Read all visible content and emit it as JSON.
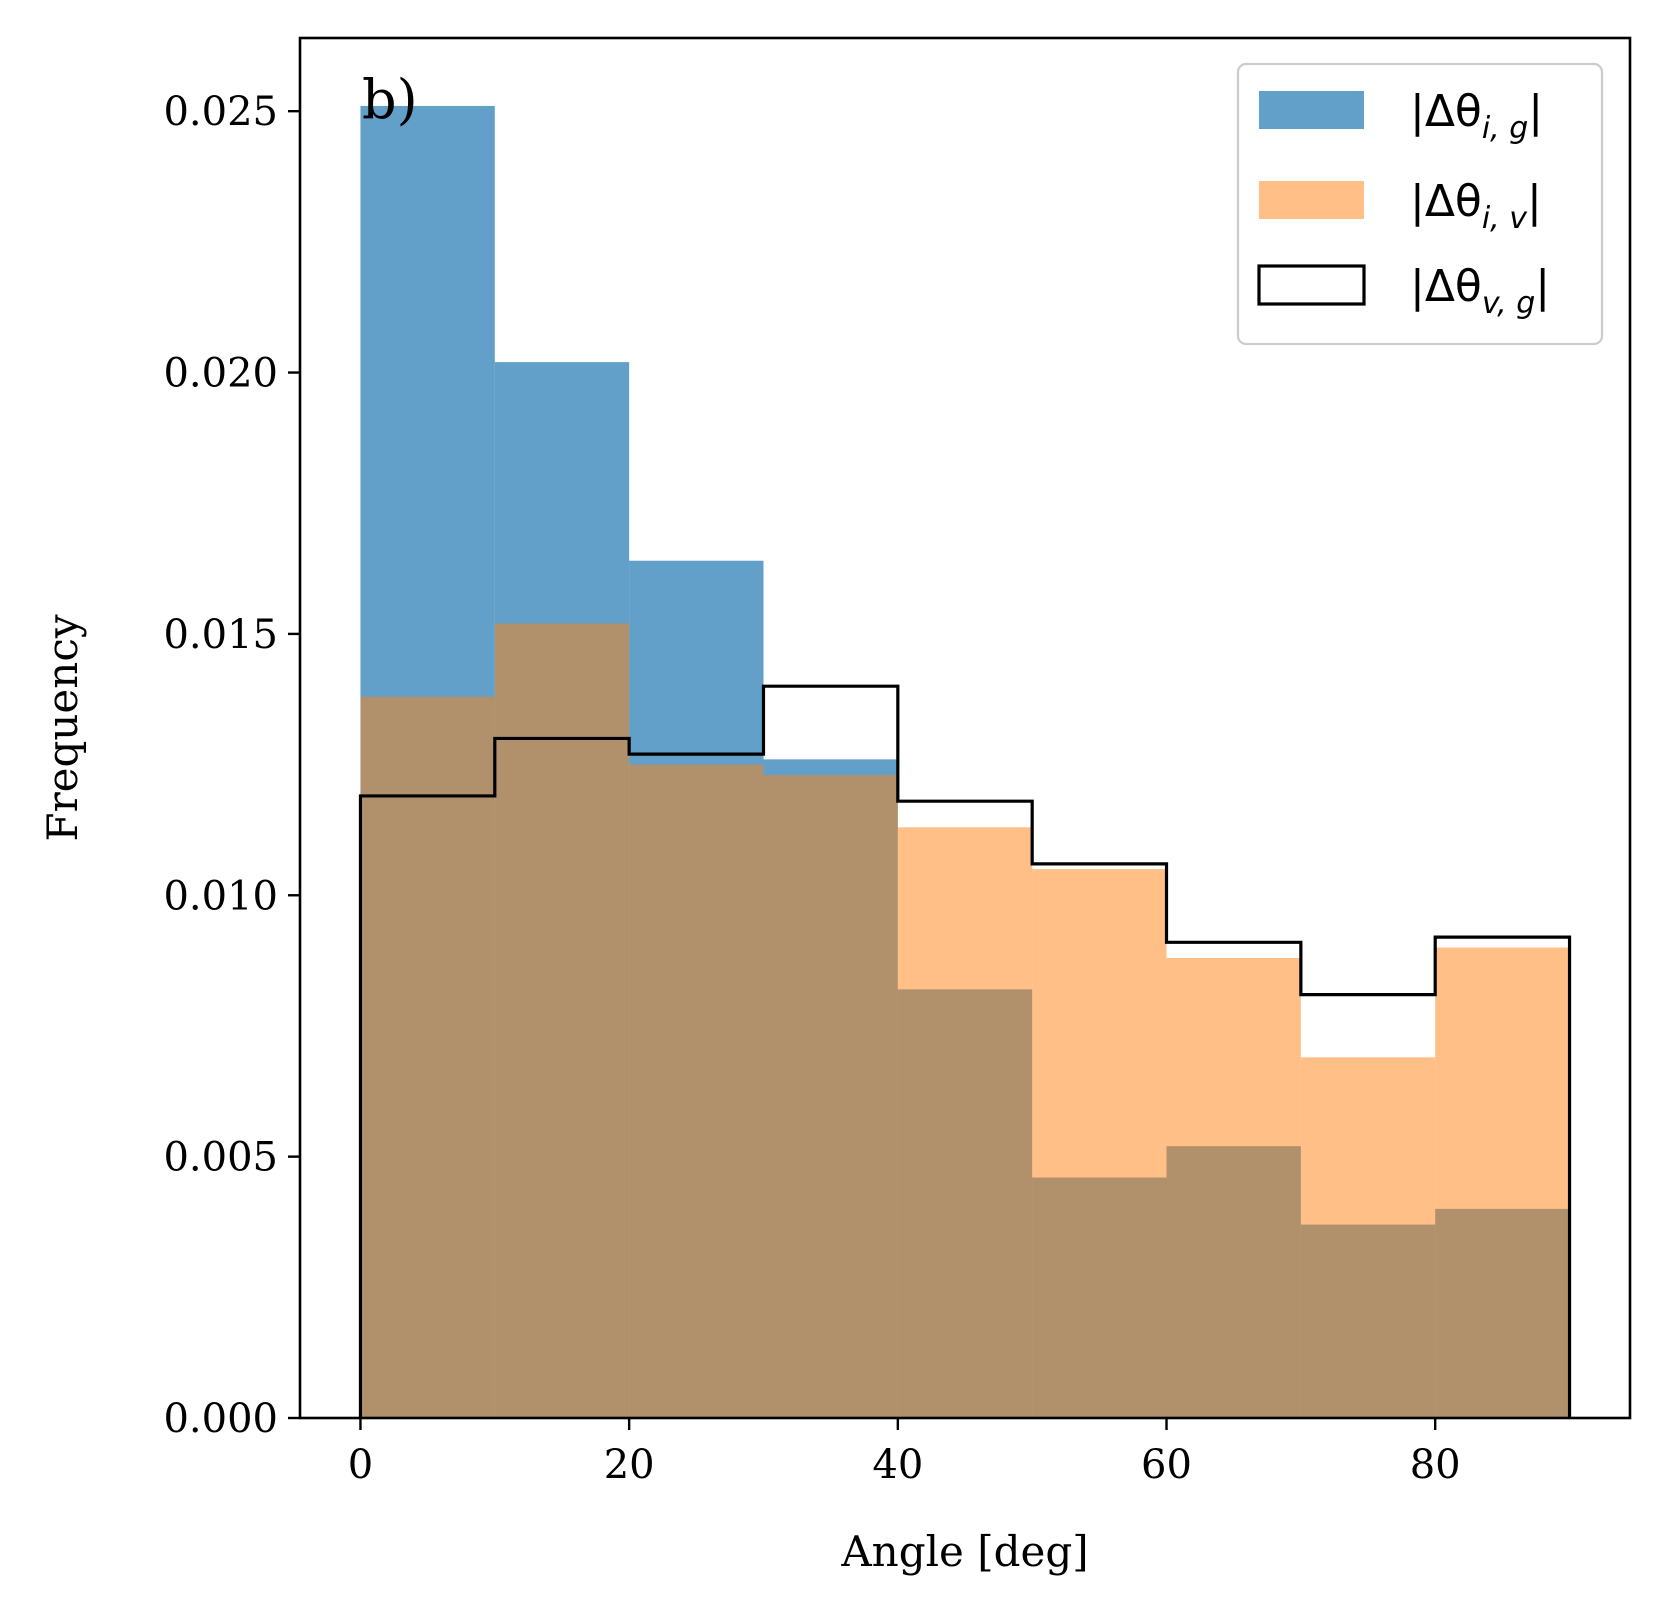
{
  "chart_data": {
    "type": "histogram",
    "panel_label": "b)",
    "xlabel": "Angle [deg]",
    "ylabel": "Frequency",
    "xlim": [
      -4.5,
      94.5
    ],
    "ylim": [
      0,
      0.0264
    ],
    "grid": false,
    "legend_position": "top-right",
    "bin_edges": [
      0,
      10,
      20,
      30,
      40,
      50,
      60,
      70,
      80,
      90
    ],
    "x_ticks": [
      0,
      20,
      40,
      60,
      80
    ],
    "x_tick_labels": [
      "0",
      "20",
      "40",
      "60",
      "80"
    ],
    "y_ticks": [
      0.0,
      0.005,
      0.01,
      0.015,
      0.02,
      0.025
    ],
    "y_tick_labels": [
      "0.000",
      "0.005",
      "0.010",
      "0.015",
      "0.020",
      "0.025"
    ],
    "series": [
      {
        "name": "|Δθ_{i,g}|",
        "legend_main": "|Δθ",
        "legend_sub": "i, g",
        "legend_tail": "|",
        "style": "filled",
        "color": "#1f77b4",
        "opacity": 0.7,
        "values": [
          0.0251,
          0.0202,
          0.0164,
          0.0126,
          0.0082,
          0.0046,
          0.0052,
          0.0037,
          0.004
        ]
      },
      {
        "name": "|Δθ_{i,v}|",
        "legend_main": "|Δθ",
        "legend_sub": "i, v",
        "legend_tail": "|",
        "style": "filled",
        "color": "#ff7f0e",
        "opacity": 0.5,
        "values": [
          0.0138,
          0.0152,
          0.0125,
          0.0123,
          0.0113,
          0.0105,
          0.0088,
          0.0069,
          0.009
        ]
      },
      {
        "name": "|Δθ_{v,g}|",
        "legend_main": "|Δθ",
        "legend_sub": "v, g",
        "legend_tail": "|",
        "style": "step",
        "color": "#000000",
        "values": [
          0.0119,
          0.013,
          0.0127,
          0.014,
          0.0118,
          0.0106,
          0.0091,
          0.0081,
          0.0092
        ]
      }
    ]
  }
}
